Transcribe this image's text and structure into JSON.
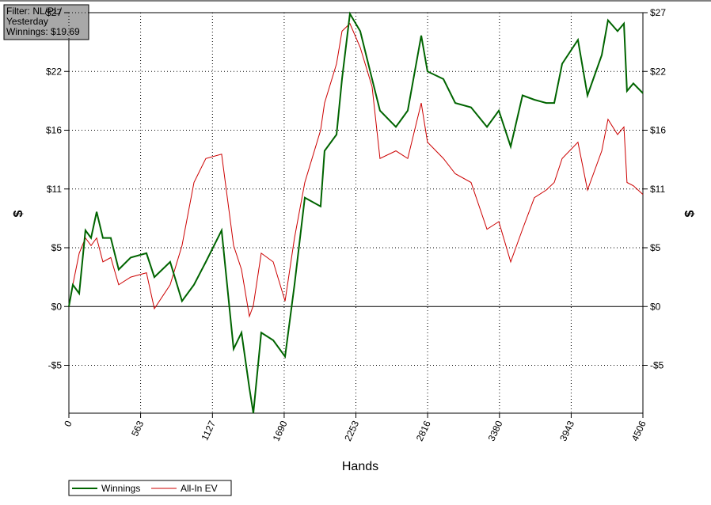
{
  "chart_data": {
    "type": "line",
    "annotation": [
      "Filter: NL/PL/",
      "Yesterday",
      "Winnings: $19.69"
    ],
    "xlabel": "Hands",
    "ylabel": "$",
    "y2label": "$",
    "xlim": [
      0,
      4506
    ],
    "xticks": [
      0,
      563,
      1127,
      1690,
      2253,
      2816,
      3380,
      3943,
      4506
    ],
    "ylim": [
      -9.8,
      27
    ],
    "yticks": [
      {
        "value": -5.4,
        "label": "-$5"
      },
      {
        "value": 0,
        "label": "$0"
      },
      {
        "value": 5.4,
        "label": "$5"
      },
      {
        "value": 10.8,
        "label": "$11"
      },
      {
        "value": 16.2,
        "label": "$16"
      },
      {
        "value": 21.6,
        "label": "$22"
      },
      {
        "value": 27,
        "label": "$27"
      }
    ],
    "grid": true,
    "legend": "bottom-left",
    "x": [
      0,
      31,
      81,
      130,
      174,
      218,
      267,
      329,
      391,
      485,
      609,
      671,
      795,
      888,
      982,
      1075,
      1199,
      1293,
      1355,
      1417,
      1448,
      1510,
      1604,
      1697,
      1771,
      1852,
      1976,
      2007,
      2101,
      2144,
      2206,
      2287,
      2380,
      2442,
      2567,
      2660,
      2766,
      2815,
      2940,
      3033,
      3157,
      3282,
      3375,
      3468,
      3561,
      3654,
      3747,
      3810,
      3872,
      3996,
      4071,
      4183,
      4232,
      4307,
      4357,
      4381,
      4431,
      4506
    ],
    "series": [
      {
        "name": "Winnings",
        "color": "#006400",
        "values": [
          0,
          2,
          1.2,
          7,
          6.3,
          8.7,
          6.3,
          6.3,
          3.4,
          4.5,
          4.9,
          2.7,
          4.1,
          0.5,
          2,
          4.1,
          7,
          -3.9,
          -2.4,
          -7.5,
          -9.8,
          -2.4,
          -3.1,
          -4.6,
          2,
          10,
          9.2,
          14.3,
          15.8,
          20.9,
          26.9,
          25.3,
          20.9,
          18,
          16.5,
          18,
          24.9,
          21.6,
          20.9,
          18.7,
          18.3,
          16.5,
          18,
          14.7,
          19.4,
          19,
          18.7,
          18.7,
          22.3,
          24.5,
          19.4,
          23.1,
          26.3,
          25.3,
          26,
          19.8,
          20.5,
          19.6
        ]
      },
      {
        "name": "All-In EV",
        "color": "#cc0000",
        "values": [
          0,
          2,
          4.9,
          6.3,
          5.6,
          6.3,
          4.1,
          4.5,
          2,
          2.7,
          3.1,
          -0.2,
          2,
          5.6,
          11.4,
          13.6,
          14,
          5.6,
          3.4,
          -0.9,
          0.1,
          4.9,
          4.1,
          0.5,
          6.3,
          11.4,
          16.2,
          18.7,
          22.3,
          25.3,
          26,
          23.8,
          20.2,
          13.6,
          14.3,
          13.6,
          18.7,
          15.1,
          13.6,
          12.2,
          11.4,
          7.1,
          7.8,
          4.1,
          7.1,
          10,
          10.7,
          11.4,
          13.6,
          15.1,
          10.7,
          14.3,
          17.2,
          15.8,
          16.5,
          11.4,
          11.1,
          10.3
        ]
      }
    ]
  }
}
